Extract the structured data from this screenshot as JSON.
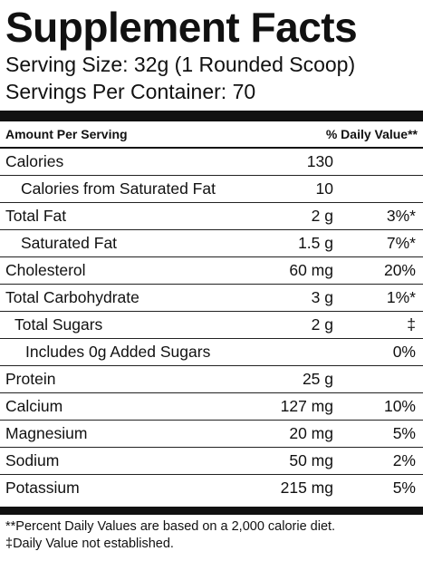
{
  "title": "Supplement Facts",
  "serving_size": "Serving Size: 32g (1 Rounded Scoop)",
  "servings_per_container": "Servings Per Container: 70",
  "header": {
    "amount_per_serving": "Amount Per Serving",
    "daily_value": "% Daily Value**"
  },
  "rows": [
    {
      "name": "Calories",
      "amount": "130",
      "dv": ""
    },
    {
      "name": "Calories from Saturated Fat",
      "amount": "10",
      "dv": ""
    },
    {
      "name": "Total Fat",
      "amount": "2 g",
      "dv": "3%*"
    },
    {
      "name": "Saturated Fat",
      "amount": "1.5 g",
      "dv": "7%*"
    },
    {
      "name": "Cholesterol",
      "amount": "60 mg",
      "dv": "20%"
    },
    {
      "name": "Total Carbohydrate",
      "amount": "3 g",
      "dv": "1%*"
    },
    {
      "name": "Total Sugars",
      "amount": "2 g",
      "dv": "‡"
    },
    {
      "name": "Includes 0g Added Sugars",
      "amount": "",
      "dv": "0%"
    },
    {
      "name": "Protein",
      "amount": "25 g",
      "dv": ""
    },
    {
      "name": "Calcium",
      "amount": "127 mg",
      "dv": "10%"
    },
    {
      "name": "Magnesium",
      "amount": "20 mg",
      "dv": "5%"
    },
    {
      "name": "Sodium",
      "amount": "50 mg",
      "dv": "2%"
    },
    {
      "name": "Potassium",
      "amount": "215 mg",
      "dv": "5%"
    }
  ],
  "footnotes": {
    "daily_values_note": "**Percent Daily Values are based on a 2,000 calorie diet.",
    "not_established_note": "‡Daily Value not established."
  }
}
